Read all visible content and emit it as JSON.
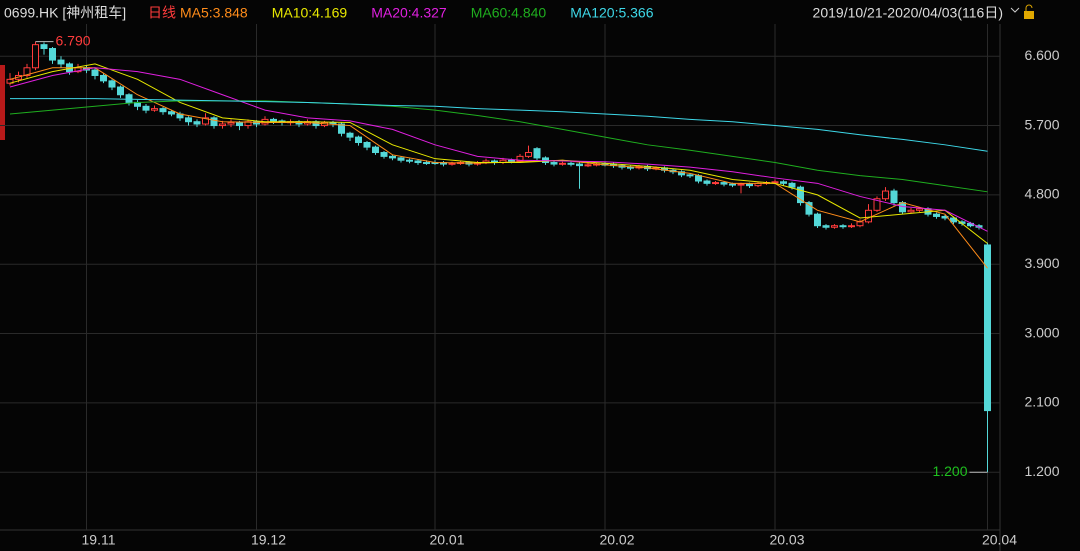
{
  "chart_data": {
    "type": "candlestick",
    "header": {
      "symbol": "0699.HK [神州租车]",
      "period": "日线",
      "range": "2019/10/21-2020/04/03(116日)"
    },
    "ylim": [
      0.45,
      7.2
    ],
    "yticks": [
      {
        "value": 1.2,
        "label": "1.200"
      },
      {
        "value": 2.1,
        "label": "2.100"
      },
      {
        "value": 3.0,
        "label": "3.000"
      },
      {
        "value": 3.9,
        "label": "3.900"
      },
      {
        "value": 4.8,
        "label": "4.800"
      },
      {
        "value": 5.7,
        "label": "5.700"
      },
      {
        "value": 6.6,
        "label": "6.600"
      }
    ],
    "xlim": [
      -1,
      116
    ],
    "xticks": [
      {
        "value": 9,
        "label": "19.11"
      },
      {
        "value": 29,
        "label": "19.12"
      },
      {
        "value": 50,
        "label": "20.01"
      },
      {
        "value": 70,
        "label": "20.02"
      },
      {
        "value": 90,
        "label": "20.03"
      },
      {
        "value": 115,
        "label": "20.04"
      }
    ],
    "grid": true,
    "up_color": "#ff3c3c",
    "down_color": "#54d8d8",
    "candles": [
      [
        6.25,
        6.38,
        6.22,
        6.3
      ],
      [
        6.3,
        6.4,
        6.26,
        6.35
      ],
      [
        6.35,
        6.5,
        6.32,
        6.45
      ],
      [
        6.45,
        6.79,
        6.42,
        6.75
      ],
      [
        6.75,
        6.78,
        6.62,
        6.7
      ],
      [
        6.7,
        6.72,
        6.5,
        6.55
      ],
      [
        6.55,
        6.6,
        6.45,
        6.5
      ],
      [
        6.5,
        6.52,
        6.36,
        6.4
      ],
      [
        6.4,
        6.5,
        6.38,
        6.45
      ],
      [
        6.45,
        6.48,
        6.38,
        6.42
      ],
      [
        6.42,
        6.44,
        6.3,
        6.35
      ],
      [
        6.35,
        6.38,
        6.25,
        6.28
      ],
      [
        6.28,
        6.3,
        6.16,
        6.2
      ],
      [
        6.2,
        6.22,
        6.06,
        6.1
      ],
      [
        6.1,
        6.12,
        5.96,
        6.0
      ],
      [
        6.0,
        6.03,
        5.9,
        5.95
      ],
      [
        5.95,
        5.98,
        5.86,
        5.9
      ],
      [
        5.9,
        5.96,
        5.88,
        5.92
      ],
      [
        5.92,
        5.94,
        5.84,
        5.88
      ],
      [
        5.88,
        5.9,
        5.82,
        5.85
      ],
      [
        5.85,
        5.88,
        5.76,
        5.8
      ],
      [
        5.8,
        5.82,
        5.7,
        5.75
      ],
      [
        5.75,
        5.78,
        5.68,
        5.72
      ],
      [
        5.72,
        5.86,
        5.7,
        5.8
      ],
      [
        5.8,
        5.82,
        5.66,
        5.7
      ],
      [
        5.7,
        5.76,
        5.66,
        5.72
      ],
      [
        5.72,
        5.78,
        5.68,
        5.74
      ],
      [
        5.74,
        5.76,
        5.64,
        5.7
      ],
      [
        5.7,
        5.78,
        5.66,
        5.75
      ],
      [
        5.75,
        5.77,
        5.68,
        5.72
      ],
      [
        5.72,
        5.82,
        5.7,
        5.78
      ],
      [
        5.78,
        5.8,
        5.72,
        5.76
      ],
      [
        5.76,
        5.78,
        5.7,
        5.74
      ],
      [
        5.74,
        5.78,
        5.7,
        5.75
      ],
      [
        5.75,
        5.77,
        5.68,
        5.72
      ],
      [
        5.72,
        5.78,
        5.7,
        5.75
      ],
      [
        5.75,
        5.77,
        5.66,
        5.7
      ],
      [
        5.7,
        5.76,
        5.68,
        5.74
      ],
      [
        5.74,
        5.76,
        5.68,
        5.72
      ],
      [
        5.72,
        5.74,
        5.56,
        5.6
      ],
      [
        5.6,
        5.62,
        5.5,
        5.55
      ],
      [
        5.55,
        5.57,
        5.44,
        5.48
      ],
      [
        5.48,
        5.5,
        5.38,
        5.42
      ],
      [
        5.42,
        5.44,
        5.32,
        5.35
      ],
      [
        5.35,
        5.37,
        5.27,
        5.3
      ],
      [
        5.3,
        5.32,
        5.25,
        5.28
      ],
      [
        5.28,
        5.3,
        5.22,
        5.25
      ],
      [
        5.25,
        5.27,
        5.21,
        5.24
      ],
      [
        5.24,
        5.26,
        5.19,
        5.22
      ],
      [
        5.22,
        5.25,
        5.19,
        5.22
      ],
      [
        5.22,
        5.25,
        5.19,
        5.22
      ],
      [
        5.22,
        5.24,
        5.17,
        5.2
      ],
      [
        5.2,
        5.23,
        5.18,
        5.21
      ],
      [
        5.21,
        5.24,
        5.19,
        5.22
      ],
      [
        5.22,
        5.24,
        5.17,
        5.2
      ],
      [
        5.2,
        5.24,
        5.18,
        5.22
      ],
      [
        5.22,
        5.27,
        5.2,
        5.24
      ],
      [
        5.24,
        5.26,
        5.19,
        5.22
      ],
      [
        5.22,
        5.28,
        5.2,
        5.25
      ],
      [
        5.25,
        5.27,
        5.21,
        5.24
      ],
      [
        5.24,
        5.33,
        5.22,
        5.3
      ],
      [
        5.3,
        5.44,
        5.28,
        5.35
      ],
      [
        5.4,
        5.42,
        5.25,
        5.28
      ],
      [
        5.28,
        5.3,
        5.19,
        5.22
      ],
      [
        5.22,
        5.24,
        5.17,
        5.2
      ],
      [
        5.2,
        5.23,
        5.18,
        5.21
      ],
      [
        5.21,
        5.23,
        5.17,
        5.2
      ],
      [
        5.2,
        5.22,
        4.88,
        5.18
      ],
      [
        5.18,
        5.21,
        5.16,
        5.19
      ],
      [
        5.19,
        5.22,
        5.17,
        5.2
      ],
      [
        5.2,
        5.23,
        5.17,
        5.2
      ],
      [
        5.2,
        5.22,
        5.15,
        5.18
      ],
      [
        5.18,
        5.2,
        5.13,
        5.16
      ],
      [
        5.16,
        5.18,
        5.12,
        5.15
      ],
      [
        5.15,
        5.19,
        5.13,
        5.17
      ],
      [
        5.17,
        5.19,
        5.11,
        5.14
      ],
      [
        5.14,
        5.17,
        5.12,
        5.15
      ],
      [
        5.15,
        5.17,
        5.09,
        5.12
      ],
      [
        5.12,
        5.14,
        5.07,
        5.1
      ],
      [
        5.1,
        5.12,
        5.03,
        5.06
      ],
      [
        5.06,
        5.08,
        5.02,
        5.05
      ],
      [
        5.05,
        5.07,
        4.95,
        4.98
      ],
      [
        4.98,
        5.0,
        4.92,
        4.95
      ],
      [
        4.95,
        4.98,
        4.93,
        4.96
      ],
      [
        4.96,
        4.98,
        4.91,
        4.94
      ],
      [
        4.94,
        4.96,
        4.9,
        4.93
      ],
      [
        4.93,
        4.96,
        4.82,
        4.94
      ],
      [
        4.94,
        4.96,
        4.89,
        4.92
      ],
      [
        4.92,
        4.97,
        4.9,
        4.95
      ],
      [
        4.95,
        4.98,
        4.93,
        4.96
      ],
      [
        4.96,
        5.0,
        4.94,
        4.97
      ],
      [
        4.97,
        4.99,
        4.92,
        4.95
      ],
      [
        4.95,
        4.97,
        4.87,
        4.9
      ],
      [
        4.9,
        4.92,
        4.66,
        4.7
      ],
      [
        4.7,
        4.72,
        4.52,
        4.55
      ],
      [
        4.55,
        4.57,
        4.37,
        4.4
      ],
      [
        4.4,
        4.42,
        4.35,
        4.38
      ],
      [
        4.38,
        4.42,
        4.36,
        4.4
      ],
      [
        4.4,
        4.42,
        4.36,
        4.39
      ],
      [
        4.39,
        4.43,
        4.37,
        4.4
      ],
      [
        4.4,
        4.48,
        4.38,
        4.45
      ],
      [
        4.45,
        4.68,
        4.43,
        4.6
      ],
      [
        4.6,
        4.78,
        4.58,
        4.75
      ],
      [
        4.75,
        4.9,
        4.72,
        4.85
      ],
      [
        4.85,
        4.88,
        4.66,
        4.7
      ],
      [
        4.7,
        4.72,
        4.55,
        4.58
      ],
      [
        4.58,
        4.63,
        4.56,
        4.6
      ],
      [
        4.6,
        4.64,
        4.58,
        4.62
      ],
      [
        4.62,
        4.64,
        4.52,
        4.55
      ],
      [
        4.55,
        4.57,
        4.49,
        4.52
      ],
      [
        4.52,
        4.54,
        4.47,
        4.5
      ],
      [
        4.5,
        4.52,
        4.42,
        4.45
      ],
      [
        4.45,
        4.47,
        4.4,
        4.43
      ],
      [
        4.43,
        4.45,
        4.38,
        4.4
      ],
      [
        4.4,
        4.42,
        4.35,
        4.38
      ],
      [
        4.15,
        4.18,
        1.2,
        2.0
      ]
    ],
    "series": [
      {
        "name": "MA5:3.848",
        "color": "#ff8c1a",
        "x": [
          0,
          5,
          10,
          15,
          20,
          25,
          30,
          35,
          40,
          45,
          50,
          55,
          60,
          65,
          70,
          75,
          80,
          85,
          90,
          95,
          100,
          105,
          110,
          115
        ],
        "values": [
          6.3,
          6.45,
          6.45,
          6.1,
          5.85,
          5.75,
          5.74,
          5.74,
          5.7,
          5.32,
          5.22,
          5.21,
          5.23,
          5.25,
          5.19,
          5.15,
          5.08,
          4.95,
          4.95,
          4.6,
          4.45,
          4.7,
          4.55,
          3.848
        ]
      },
      {
        "name": "MA10:4.169",
        "color": "#e8e800",
        "x": [
          0,
          5,
          10,
          15,
          20,
          25,
          30,
          35,
          40,
          45,
          50,
          55,
          60,
          65,
          70,
          75,
          80,
          85,
          90,
          95,
          100,
          105,
          110,
          115
        ],
        "values": [
          6.25,
          6.4,
          6.5,
          6.3,
          6.0,
          5.8,
          5.75,
          5.75,
          5.74,
          5.45,
          5.27,
          5.22,
          5.22,
          5.25,
          5.21,
          5.17,
          5.12,
          5.0,
          4.95,
          4.8,
          4.5,
          4.55,
          4.6,
          4.169
        ]
      },
      {
        "name": "MA20:4.327",
        "color": "#e020e0",
        "x": [
          0,
          5,
          10,
          15,
          20,
          25,
          30,
          35,
          40,
          45,
          50,
          55,
          60,
          65,
          70,
          75,
          80,
          85,
          90,
          95,
          100,
          105,
          110,
          115
        ],
        "values": [
          6.2,
          6.35,
          6.45,
          6.4,
          6.3,
          6.1,
          5.9,
          5.8,
          5.76,
          5.65,
          5.45,
          5.3,
          5.25,
          5.24,
          5.23,
          5.2,
          5.16,
          5.1,
          5.02,
          4.95,
          4.78,
          4.65,
          4.6,
          4.327
        ]
      },
      {
        "name": "MA60:4.840",
        "color": "#1fae1f",
        "x": [
          0,
          5,
          10,
          15,
          20,
          25,
          30,
          35,
          40,
          45,
          50,
          55,
          60,
          65,
          70,
          75,
          80,
          85,
          90,
          95,
          100,
          105,
          110,
          115
        ],
        "values": [
          5.85,
          5.9,
          5.95,
          6.0,
          6.02,
          6.02,
          6.02,
          6.0,
          5.98,
          5.95,
          5.9,
          5.83,
          5.75,
          5.65,
          5.55,
          5.45,
          5.38,
          5.3,
          5.22,
          5.12,
          5.05,
          5.0,
          4.92,
          4.84
        ]
      },
      {
        "name": "MA120:5.366",
        "color": "#3ed8e8",
        "x": [
          0,
          5,
          10,
          15,
          20,
          25,
          30,
          35,
          40,
          45,
          50,
          55,
          60,
          65,
          70,
          75,
          80,
          85,
          90,
          95,
          100,
          105,
          110,
          115
        ],
        "values": [
          6.05,
          6.05,
          6.05,
          6.04,
          6.03,
          6.02,
          6.01,
          6.0,
          5.98,
          5.96,
          5.95,
          5.92,
          5.9,
          5.88,
          5.85,
          5.82,
          5.78,
          5.75,
          5.7,
          5.65,
          5.58,
          5.52,
          5.45,
          5.366
        ]
      }
    ],
    "annotations": [
      {
        "x": 3,
        "value": 6.79,
        "label": "6.790",
        "color": "#ff3c3c"
      },
      {
        "x": 115,
        "value": 1.2,
        "label": "1.200",
        "color": "#1fc01f"
      }
    ]
  }
}
